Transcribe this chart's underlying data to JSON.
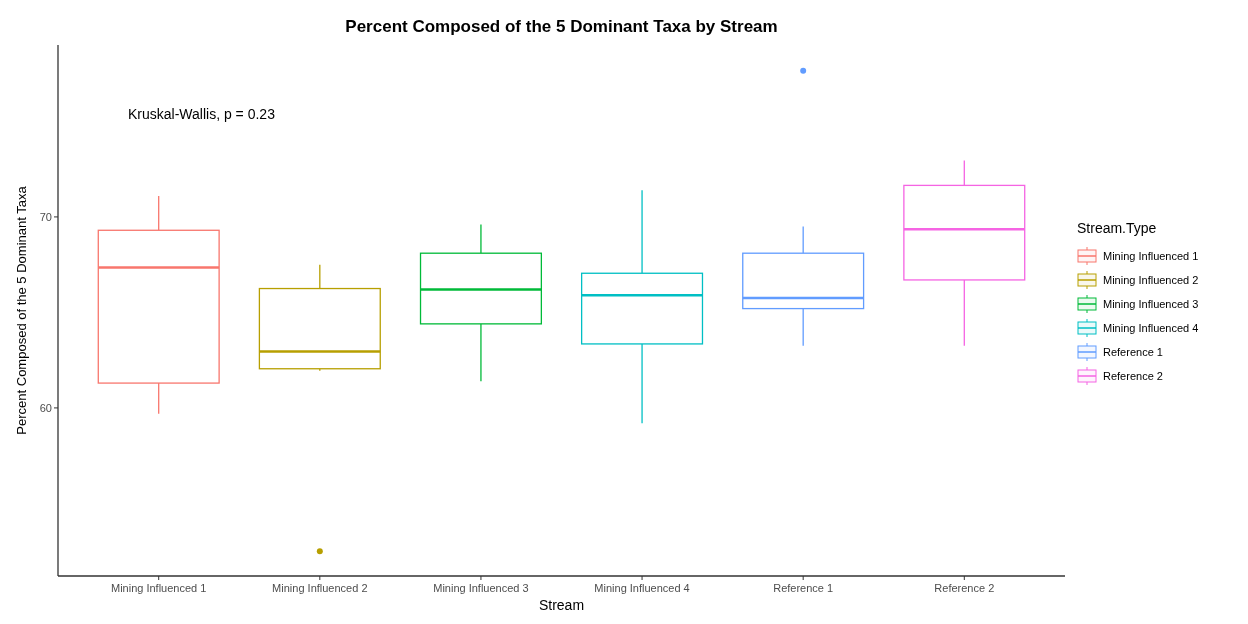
{
  "chart_data": {
    "type": "box",
    "title": "Percent Composed of the 5 Dominant Taxa by Stream",
    "xlabel": "Stream",
    "ylabel": "Percent Composed of the 5 Dominant Taxa",
    "legend_title": "Stream.Type",
    "annotations": [
      "Kruskal-Wallis, p = 0.23"
    ],
    "categories": [
      "Mining Influenced 1",
      "Mining Influenced 2",
      "Mining Influenced 3",
      "Mining Influenced 4",
      "Reference 1",
      "Reference 2"
    ],
    "series": [
      {
        "name": "Mining Influenced 1",
        "color": "#f8766d",
        "boxes": [
          {
            "low": 59.7,
            "q1": 61.3,
            "median": 67.35,
            "q3": 69.3,
            "high": 71.1
          },
          null,
          null,
          null,
          null,
          null
        ]
      },
      {
        "name": "Mining Influenced 2",
        "color": "#b79f00",
        "boxes": [
          null,
          {
            "low": 61.95,
            "q1": 62.05,
            "median": 62.95,
            "q3": 66.25,
            "high": 67.5,
            "outliers": [
              52.5
            ]
          },
          null,
          null,
          null,
          null
        ]
      },
      {
        "name": "Mining Influenced 3",
        "color": "#00ba38",
        "boxes": [
          null,
          null,
          {
            "low": 61.4,
            "q1": 64.4,
            "median": 66.2,
            "q3": 68.1,
            "high": 69.6
          },
          null,
          null,
          null
        ]
      },
      {
        "name": "Mining Influenced 4",
        "color": "#00bfc4",
        "boxes": [
          null,
          null,
          null,
          {
            "low": 59.2,
            "q1": 63.35,
            "median": 65.9,
            "q3": 67.05,
            "high": 71.4
          },
          null,
          null
        ]
      },
      {
        "name": "Reference 1",
        "color": "#619cff",
        "boxes": [
          null,
          null,
          null,
          null,
          {
            "low": 63.25,
            "q1": 65.2,
            "median": 65.75,
            "q3": 68.1,
            "high": 69.5,
            "outliers": [
              77.65
            ]
          },
          null
        ]
      },
      {
        "name": "Reference 2",
        "color": "#f564e3",
        "boxes": [
          null,
          null,
          null,
          null,
          null,
          {
            "low": 63.25,
            "q1": 66.7,
            "median": 69.35,
            "q3": 71.65,
            "high": 72.95
          }
        ]
      }
    ],
    "ylim": [
      51.2,
      79
    ],
    "yticks": [
      60,
      70
    ],
    "grid": false,
    "legend": "right"
  }
}
